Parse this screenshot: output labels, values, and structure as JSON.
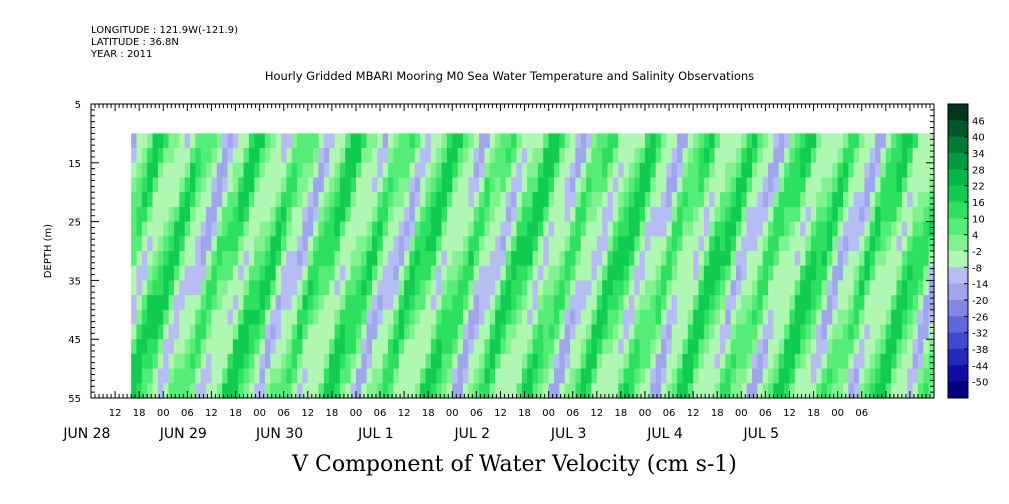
{
  "header": {
    "longitude": "LONGITUDE : 121.9W(-121.9)",
    "latitude": "LATITUDE : 36.8N",
    "year": "YEAR : 2011"
  },
  "chart_data": {
    "type": "heatmap",
    "title": "Hourly Gridded MBARI Mooring M0 Sea Water Temperature and Salinity Observations",
    "caption": "V Component of Water Velocity (cm s-1)",
    "ylabel": "DEPTH (m)",
    "ylim": [
      55,
      5
    ],
    "yticks": [
      5,
      15,
      25,
      35,
      45,
      55
    ],
    "data_depth_range": [
      10,
      55
    ],
    "x_hour_ticks": [
      "12",
      "18",
      "00",
      "06",
      "12",
      "18",
      "00",
      "06",
      "12",
      "18",
      "00",
      "06",
      "12",
      "18",
      "00",
      "06",
      "12",
      "18",
      "00",
      "06",
      "12",
      "18",
      "00",
      "06",
      "12",
      "18",
      "00",
      "06",
      "12",
      "18",
      "00",
      "06"
    ],
    "x_day_labels": [
      "JUN 28",
      "JUN 29",
      "JUN 30",
      "JUL  1",
      "JUL  2",
      "JUL  3",
      "JUL  4",
      "JUL  5"
    ],
    "x_range_hours_from_jun28_00": [
      6,
      216
    ],
    "data_start_hour": 16,
    "colorbar": {
      "labels": [
        "46",
        "40",
        "34",
        "28",
        "22",
        "16",
        "10",
        "4",
        "-2",
        "-8",
        "-14",
        "-20",
        "-26",
        "-32",
        "-38",
        "-44",
        "-50"
      ],
      "colors": [
        "#00361b",
        "#005828",
        "#007a35",
        "#00993f",
        "#00b84a",
        "#12cc52",
        "#2ee05f",
        "#55ec78",
        "#80f28f",
        "#aff7b2",
        "#b6bdf2",
        "#9fa6ec",
        "#8089e3",
        "#5f68d9",
        "#4048cc",
        "#2428bb",
        "#0c0ea5",
        "#000080"
      ]
    },
    "notes": "Pattern: alternating bands of weak negative (blue) and positive 4-16 cm/s (green) values, tilting with depth, roughly tidal periodicity."
  }
}
